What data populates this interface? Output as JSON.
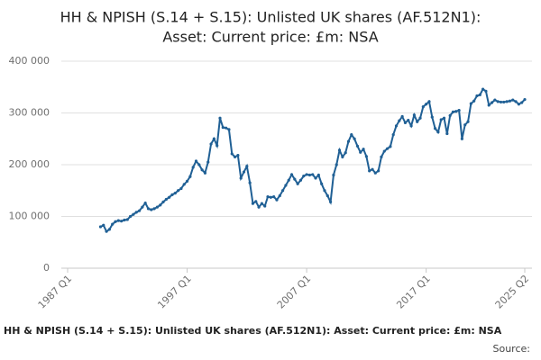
{
  "chart_data": {
    "type": "line",
    "title": [
      "HH & NPISH (S.14 + S.15): Unlisted UK shares (AF.512N1):",
      "Asset: Current price: £m: NSA"
    ],
    "footer_title": "HH & NPISH (S.14 + S.15): Unlisted UK shares (AF.512N1): Asset: Current price: £m: NSA",
    "source_label": "Source:",
    "color": "#206095",
    "grid": true,
    "ylim": [
      0,
      400000
    ],
    "yticks": [
      0,
      {
        "value": 100000,
        "label": "100 000"
      },
      {
        "value": 200000,
        "label": "200 000"
      },
      {
        "value": 300000,
        "label": "300 000"
      },
      {
        "value": 400000,
        "label": "400 000"
      }
    ],
    "categories": [
      "1987 Q1",
      null,
      null,
      null,
      null,
      null,
      null,
      null,
      null,
      null,
      null,
      null,
      null,
      null,
      null,
      null,
      null,
      null,
      null,
      null,
      null,
      null,
      null,
      null,
      null,
      null,
      null,
      null,
      null,
      null,
      null,
      null,
      null,
      null,
      null,
      null,
      null,
      null,
      null,
      null,
      "1997 Q1",
      null,
      null,
      null,
      null,
      null,
      null,
      null,
      null,
      null,
      null,
      null,
      null,
      null,
      null,
      null,
      null,
      null,
      null,
      null,
      null,
      null,
      null,
      null,
      null,
      null,
      null,
      null,
      null,
      null,
      null,
      null,
      null,
      null,
      null,
      null,
      null,
      null,
      null,
      null,
      "2007 Q1",
      null,
      null,
      null,
      null,
      null,
      null,
      null,
      null,
      null,
      null,
      null,
      null,
      null,
      null,
      null,
      null,
      null,
      null,
      null,
      null,
      null,
      null,
      null,
      null,
      null,
      null,
      null,
      null,
      null,
      null,
      null,
      null,
      null,
      null,
      null,
      null,
      null,
      null,
      null,
      "2017 Q1",
      null,
      null,
      null,
      null,
      null,
      null,
      null,
      null,
      null,
      null,
      null,
      null,
      null,
      null,
      null,
      null,
      null,
      null,
      null,
      null,
      null,
      null,
      null,
      null,
      null,
      null,
      null,
      null,
      null,
      null,
      null,
      null,
      "2025 Q2"
    ],
    "values": [
      null,
      null,
      null,
      null,
      null,
      null,
      null,
      null,
      null,
      null,
      null,
      80000,
      83000,
      71000,
      75000,
      85000,
      90000,
      92000,
      91000,
      93000,
      94000,
      100000,
      104000,
      108000,
      111000,
      118000,
      126000,
      115000,
      113000,
      115000,
      118000,
      122000,
      128000,
      133000,
      137000,
      142000,
      145000,
      150000,
      154000,
      162000,
      168000,
      177000,
      195000,
      207000,
      200000,
      190000,
      184000,
      205000,
      240000,
      250000,
      237000,
      290000,
      272000,
      271000,
      268000,
      221000,
      215000,
      218000,
      174000,
      186000,
      197000,
      165000,
      125000,
      129000,
      118000,
      125000,
      120000,
      138000,
      137000,
      138000,
      132000,
      140000,
      150000,
      160000,
      170000,
      181000,
      172000,
      163000,
      170000,
      178000,
      181000,
      180000,
      181000,
      174000,
      180000,
      163000,
      150000,
      140000,
      128000,
      180000,
      200000,
      228000,
      215000,
      223000,
      245000,
      258000,
      250000,
      236000,
      224000,
      230000,
      216000,
      188000,
      191000,
      184000,
      188000,
      215000,
      226000,
      231000,
      235000,
      258000,
      275000,
      285000,
      293000,
      281000,
      286000,
      275000,
      296000,
      283000,
      290000,
      312000,
      317000,
      322000,
      292000,
      270000,
      263000,
      287000,
      290000,
      260000,
      295000,
      302000,
      303000,
      305000,
      250000,
      277000,
      283000,
      318000,
      323000,
      333000,
      335000,
      346000,
      342000,
      315000,
      320000,
      325000,
      322000,
      321000,
      321000,
      322000,
      323000,
      325000,
      322000,
      317000,
      320000,
      326000
    ]
  }
}
